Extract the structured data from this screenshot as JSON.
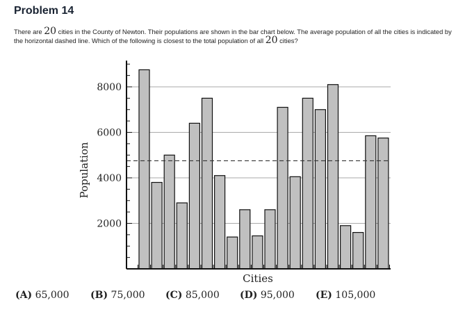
{
  "problem": {
    "title": "Problem 14",
    "text_part1": "There are ",
    "n1": "20",
    "text_part2": " cities in the County of Newton. Their populations are shown in the bar chart below. The average population of all the cities is indicated by the horizontal dashed line. Which of the following is closest to the total population of all ",
    "n2": "20",
    "text_part3": " cities?"
  },
  "choices": [
    {
      "label": "(A)",
      "value": "65,000"
    },
    {
      "label": "(B)",
      "value": "75,000"
    },
    {
      "label": "(C)",
      "value": "85,000"
    },
    {
      "label": "(D)",
      "value": "95,000"
    },
    {
      "label": "(E)",
      "value": "105,000"
    }
  ],
  "chart_data": {
    "type": "bar",
    "title": "",
    "xlabel": "Cities",
    "ylabel": "Population",
    "ylim": [
      0,
      9000
    ],
    "yticks": [
      2000,
      4000,
      6000,
      8000
    ],
    "grid": true,
    "values": [
      8750,
      3800,
      5000,
      2900,
      6400,
      7500,
      4100,
      1400,
      2600,
      1450,
      2600,
      7100,
      4050,
      7500,
      7000,
      8100,
      1900,
      1600,
      5850,
      5750
    ],
    "average": 4750,
    "colors": {
      "bar_fill": "#c0c0c0",
      "bar_stroke": "#111111",
      "grid": "#aaaaaa",
      "average_line": "#333333"
    }
  }
}
